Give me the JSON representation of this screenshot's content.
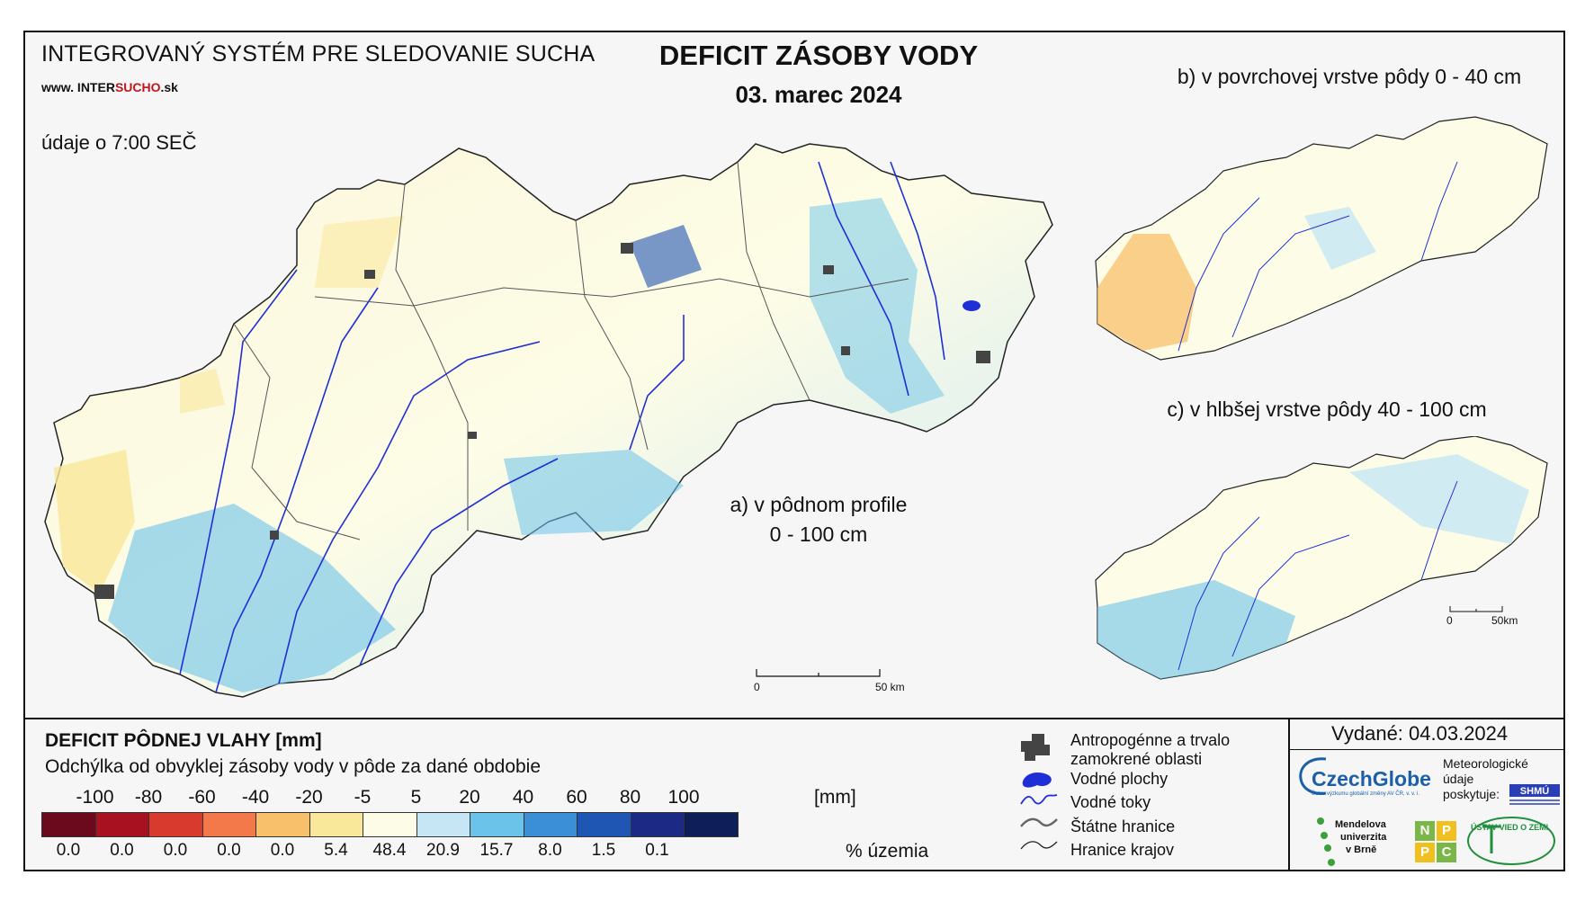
{
  "header": {
    "system": "INTEGROVANÝ SYSTÉM PRE SLEDOVANIE SUCHA",
    "web_prefix": "www. INTER",
    "web_red": "SUCHO",
    "web_suffix": ".sk",
    "time_note": "údaje o 7:00 SEČ",
    "title": "DEFICIT ZÁSOBY VODY",
    "date": "03. marec 2024"
  },
  "maps": {
    "a_label_line1": "a) v pôdnom profile",
    "a_label_line2": "0 - 100 cm",
    "b_label": "b) v povrchovej vrstve pôdy 0 - 40 cm",
    "c_label": "c) v hlbšej vrstve pôdy 40 - 100 cm",
    "scale_a_zero": "0",
    "scale_a_end": "50 km",
    "scale_c_zero": "0",
    "scale_c_end": "50km"
  },
  "legend": {
    "title": "DEFICIT PÔDNEJ VLAHY [mm]",
    "subtitle": "Odchýlka od obvyklej zásoby vody v pôde za dané obdobie",
    "ticks": [
      "-100",
      "-80",
      "-60",
      "-40",
      "-20",
      "-5",
      "5",
      "20",
      "40",
      "60",
      "80",
      "100"
    ],
    "unit": "[mm]",
    "classes": [
      {
        "color": "#6b0a1c",
        "pct": "0.0"
      },
      {
        "color": "#a8111f",
        "pct": "0.0"
      },
      {
        "color": "#d93a2e",
        "pct": "0.0"
      },
      {
        "color": "#f3784a",
        "pct": "0.0"
      },
      {
        "color": "#f8c06a",
        "pct": "0.0"
      },
      {
        "color": "#f9e79a",
        "pct": "5.4"
      },
      {
        "color": "#fdfce6",
        "pct": "48.4"
      },
      {
        "color": "#c6e6f6",
        "pct": "20.9"
      },
      {
        "color": "#6cc3ea",
        "pct": "15.7"
      },
      {
        "color": "#3a8fd6",
        "pct": "8.0"
      },
      {
        "color": "#1f55b3",
        "pct": "1.5"
      },
      {
        "color": "#1c2a86",
        "pct": "0.1"
      },
      {
        "color": "#0e1f57",
        "pct": ""
      }
    ],
    "pct_unit": "% územia",
    "symbols": {
      "urban": "Antropogénne a trvalo",
      "urban2": "zamokrené oblasti",
      "water": "Vodné plochy",
      "rivers": "Vodné toky",
      "state": "Štátne hranice",
      "regions": "Hranice krajov"
    }
  },
  "issued": {
    "text": "Vydané: 04.03.2024",
    "czechglobe": "CzechGlobe",
    "czechglobe_sub": "Ústav výzkumu globální změny AV ČR, v. v. i.",
    "meteo_1": "Meteorologické",
    "meteo_2": "údaje",
    "meteo_3": "poskytuje:",
    "shmu": "SHMÚ",
    "mendel_1": "Mendelova",
    "mendel_2": "univerzita",
    "mendel_3": "v Brně",
    "npc": [
      "N",
      "P",
      "P",
      "C"
    ],
    "uvz": "ÚSTAV VIED O ZEMI"
  }
}
